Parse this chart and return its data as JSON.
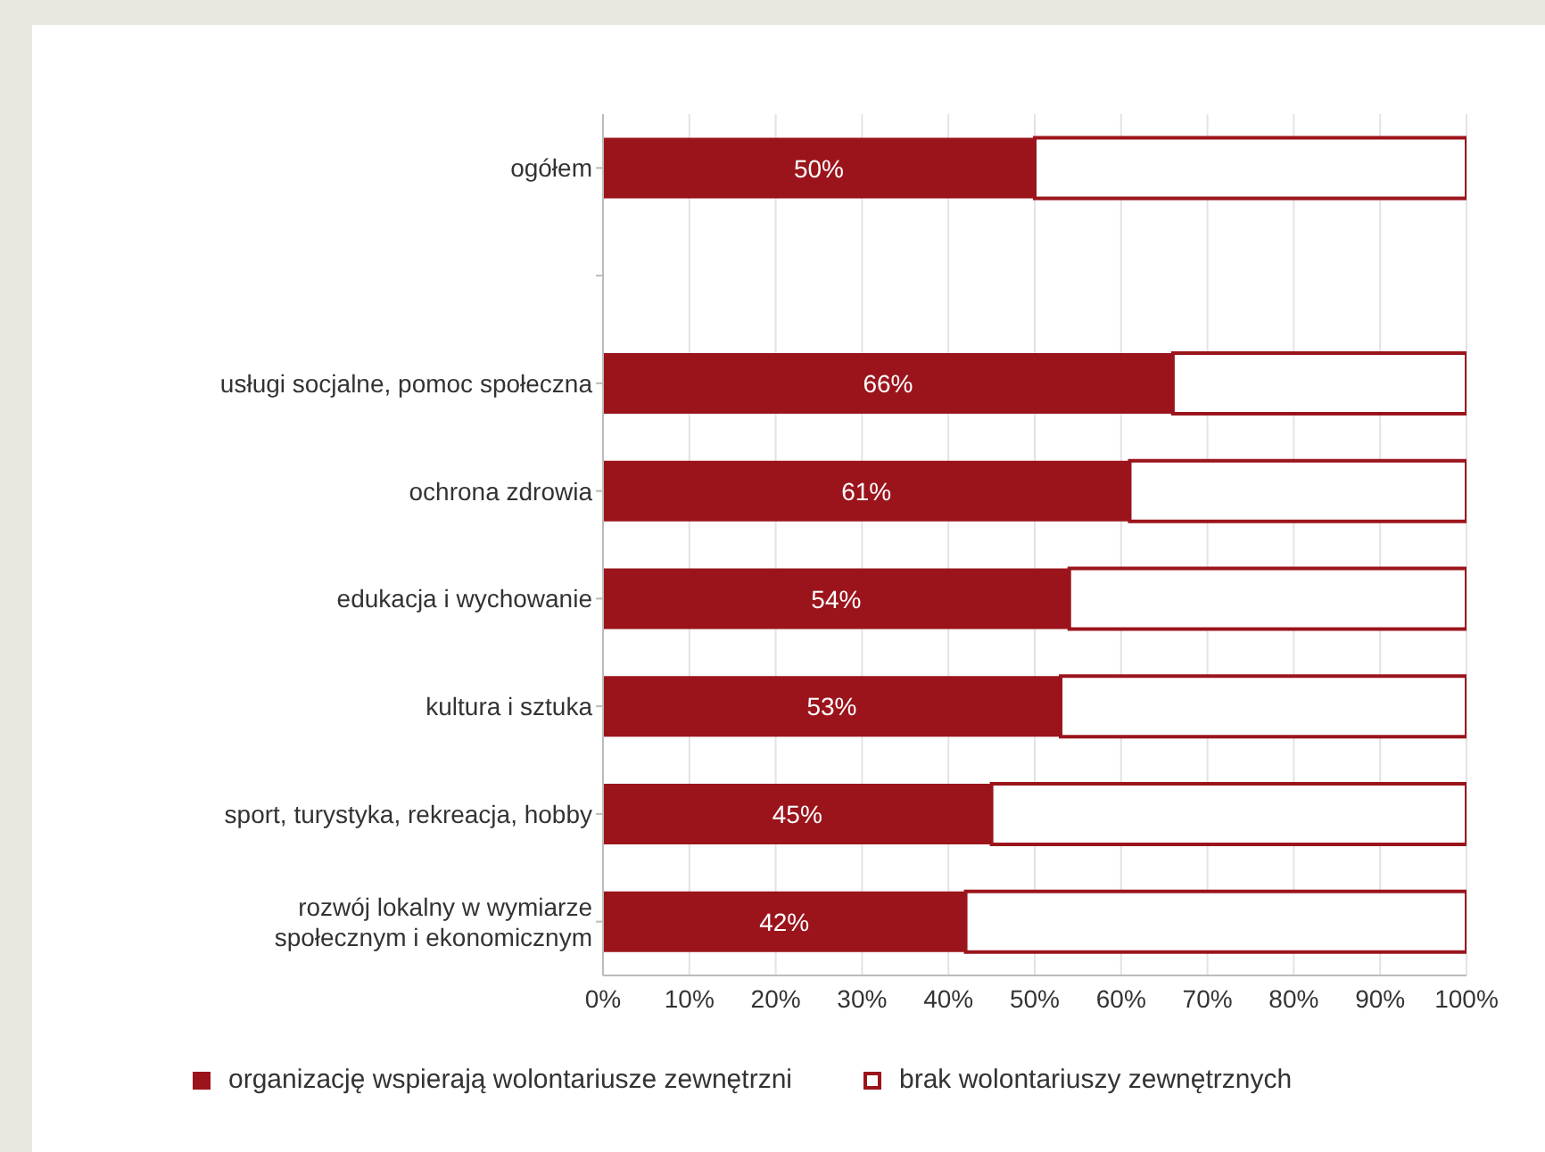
{
  "chart_data": {
    "type": "bar",
    "orientation": "horizontal",
    "stacked": true,
    "categories": [
      "ogółem",
      null,
      "usługi socjalne, pomoc społeczna",
      "ochrona zdrowia",
      "edukacja i wychowanie",
      "kultura i sztuka",
      "sport, turystyka, rekreacja, hobby",
      "rozwój lokalny w wymiarze społecznym i ekonomicznym"
    ],
    "series": [
      {
        "name": "organizację wspierają wolontariusze zewnętrzni",
        "color": "#9b141c",
        "values": [
          50,
          null,
          66,
          61,
          54,
          53,
          45,
          42
        ],
        "value_labels": [
          "50%",
          null,
          "66%",
          "61%",
          "54%",
          "53%",
          "45%",
          "42%"
        ]
      },
      {
        "name": "brak wolontariuszy zewnętrznych",
        "color": "#ffffff",
        "values": [
          50,
          null,
          34,
          39,
          46,
          47,
          55,
          58
        ]
      }
    ],
    "xlim": [
      0,
      100
    ],
    "xticks": [
      {
        "value": 0,
        "label": "0%"
      },
      {
        "value": 10,
        "label": "10%"
      },
      {
        "value": 20,
        "label": "20%"
      },
      {
        "value": 30,
        "label": "30%"
      },
      {
        "value": 40,
        "label": "40%"
      },
      {
        "value": 50,
        "label": "50%"
      },
      {
        "value": 60,
        "label": "60%"
      },
      {
        "value": 70,
        "label": "70%"
      },
      {
        "value": 80,
        "label": "80%"
      },
      {
        "value": 90,
        "label": "90%"
      },
      {
        "value": 100,
        "label": "100%"
      }
    ],
    "grid": "x",
    "legend": "bottom"
  }
}
